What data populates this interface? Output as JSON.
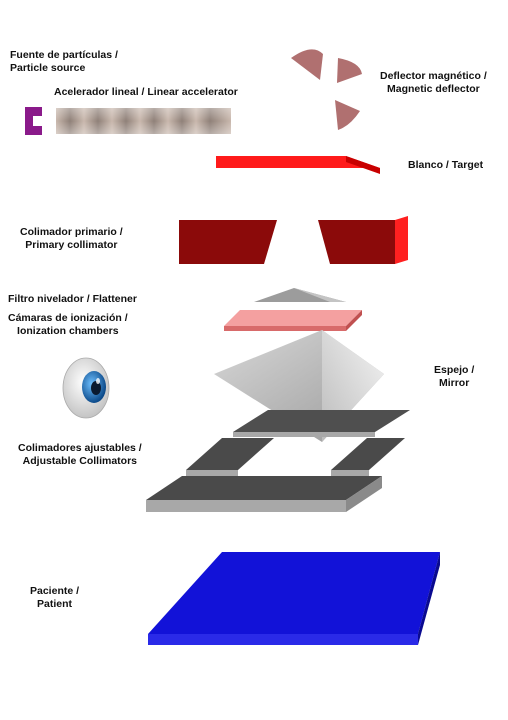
{
  "labels": {
    "particle_source": {
      "line1": "Fuente de partículas /",
      "line2": "Particle source"
    },
    "linear_accelerator": "Acelerador lineal / Linear accelerator",
    "magnetic_deflector": {
      "line1": "Deflector magnético /",
      "line2": "Magnetic deflector"
    },
    "target": "Blanco / Target",
    "primary_collimator": {
      "line1": "Colimador primario /",
      "line2": "Primary collimator"
    },
    "flattener": "Filtro nivelador / Flattener",
    "ionization_chambers": {
      "line1": "Cámaras  de ionización /",
      "line2": "Ionization chambers"
    },
    "mirror": {
      "line1": "Espejo /",
      "line2": "Mirror"
    },
    "adjustable_collimators": {
      "line1": "Colimadores ajustables /",
      "line2": "Adjustable Collimators"
    },
    "patient": {
      "line1": "Paciente /",
      "line2": "Patient"
    }
  },
  "colors": {
    "particle_source": "#8a1a8a",
    "deflector": "#b07070",
    "target": "#ff1a1a",
    "collimator_primary": "#8b0a0a",
    "flattener": "#a8a8a8",
    "ion_chamber": "#f4a0a0",
    "mirror": "#c8c8c8",
    "adjustable_collimators": "#4a4a4a",
    "patient": "#1212d8",
    "eye_iris": "#1e78c8"
  },
  "icons": [
    "eye-icon"
  ]
}
